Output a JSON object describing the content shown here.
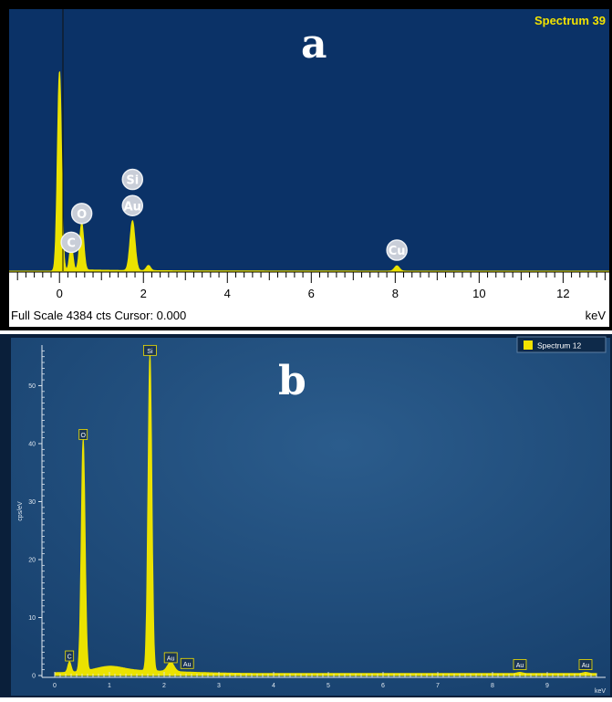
{
  "chart_data": [
    {
      "type": "line",
      "panel_letter": "a",
      "legend": "Spectrum 39",
      "legend_color": "#f2e200",
      "status_text": "Full Scale 4384 cts Cursor: 0.000",
      "xlabel": "keV",
      "x_ticks": [
        "0",
        "2",
        "4",
        "6",
        "8",
        "10",
        "12"
      ],
      "xlim": [
        -1.2,
        13.1
      ],
      "ylim": [
        0,
        100
      ],
      "background": "#0b3267",
      "series_color": "#ebe200",
      "peaks": [
        {
          "x": 0.0,
          "height": 76,
          "width": 0.05
        },
        {
          "x": 0.28,
          "height": 10,
          "width": 0.04
        },
        {
          "x": 0.53,
          "height": 18,
          "width": 0.05
        },
        {
          "x": 1.74,
          "height": 19,
          "width": 0.06
        },
        {
          "x": 2.12,
          "height": 2,
          "width": 0.05
        },
        {
          "x": 8.04,
          "height": 2,
          "width": 0.06
        }
      ],
      "labels": [
        {
          "text": "Si",
          "x": 1.74,
          "y": 35
        },
        {
          "text": "Au",
          "x": 1.74,
          "y": 25
        },
        {
          "text": "O",
          "x": 0.53,
          "y": 22
        },
        {
          "text": "C",
          "x": 0.28,
          "y": 11
        },
        {
          "text": "Cu",
          "x": 8.04,
          "y": 8
        }
      ]
    },
    {
      "type": "line",
      "panel_letter": "b",
      "legend": "Spectrum 12",
      "legend_color": "#f2e200",
      "ylabel": "cps/eV",
      "xlabel": "keV",
      "x_ticks": [
        "0",
        "1",
        "2",
        "3",
        "4",
        "5",
        "6",
        "7",
        "8",
        "9"
      ],
      "y_ticks": [
        "0",
        "10",
        "20",
        "30",
        "40",
        "50"
      ],
      "xlim": [
        0,
        9.9
      ],
      "ylim": [
        0,
        57
      ],
      "background": "#1e4a78",
      "series_color": "#ebe200",
      "peaks": [
        {
          "x": 0.27,
          "height": 1.8,
          "width": 0.03
        },
        {
          "x": 0.52,
          "height": 40,
          "width": 0.035
        },
        {
          "x": 1.0,
          "height": 0.8,
          "width": 0.25
        },
        {
          "x": 1.74,
          "height": 54.5,
          "width": 0.035
        },
        {
          "x": 2.12,
          "height": 1.6,
          "width": 0.06
        },
        {
          "x": 8.5,
          "height": 0.2,
          "width": 0.05
        },
        {
          "x": 9.7,
          "height": 0.2,
          "width": 0.05
        }
      ],
      "labels": [
        {
          "text": "Si",
          "x": 1.74,
          "y": 56
        },
        {
          "text": "O",
          "x": 0.52,
          "y": 41.5
        },
        {
          "text": "C",
          "x": 0.27,
          "y": 3.3
        },
        {
          "text": "Au",
          "x": 2.12,
          "y": 3.0
        },
        {
          "text": "Au",
          "x": 2.42,
          "y": 2.0
        },
        {
          "text": "Au",
          "x": 8.5,
          "y": 1.8
        },
        {
          "text": "Au",
          "x": 9.7,
          "y": 1.8
        }
      ]
    }
  ]
}
